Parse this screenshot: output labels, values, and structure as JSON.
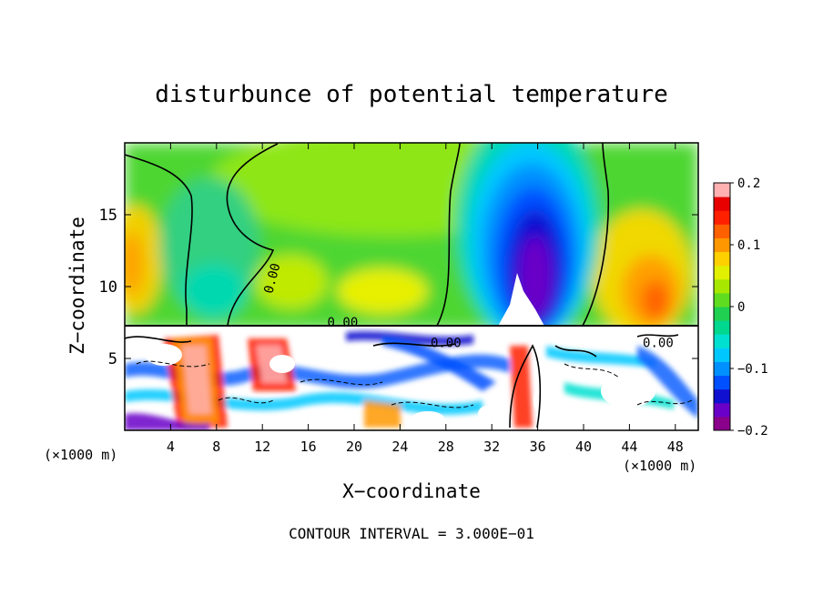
{
  "chart_data": {
    "type": "heatmap",
    "title": "disturbunce of potential temperature",
    "xlabel": "X−coordinate",
    "ylabel": "Z−coordinate",
    "x_unit": "(×1000 m)",
    "x_unit_right": "(×1000 m)",
    "footnote": "CONTOUR INTERVAL = 3.000E−01",
    "xlim": [
      0,
      50
    ],
    "ylim": [
      0,
      20
    ],
    "x_ticks": [
      4,
      8,
      12,
      16,
      20,
      24,
      28,
      32,
      36,
      40,
      44,
      48
    ],
    "y_ticks": [
      5,
      10,
      15
    ],
    "x_tick_labels": [
      "4",
      "8",
      "12",
      "16",
      "20",
      "24",
      "28",
      "32",
      "36",
      "40",
      "44",
      "48"
    ],
    "y_tick_labels": [
      "5",
      "10",
      "15"
    ],
    "colorbar": {
      "range": [
        -0.2,
        0.2
      ],
      "tick_values": [
        0.2,
        0.1,
        0,
        -0.1,
        -0.2
      ],
      "tick_labels": [
        "0.2",
        "0.1",
        "0",
        "−0.1",
        "−0.2"
      ],
      "colors": [
        "#8b008b",
        "#6a00c8",
        "#1010d0",
        "#0050ff",
        "#0090ff",
        "#00c8ff",
        "#00e0d0",
        "#00d890",
        "#20d050",
        "#60dc20",
        "#a8e800",
        "#e0f000",
        "#ffd000",
        "#ff9800",
        "#ff6000",
        "#ff2000",
        "#e80000",
        "#ffb0b0"
      ]
    },
    "contour_labels": [
      {
        "text": "0.00",
        "x": 13.2,
        "z": 10.5
      },
      {
        "text": "0.00",
        "x": 19.0,
        "z": 7.2
      },
      {
        "text": "0.00",
        "x": 28.0,
        "z": 5.8
      },
      {
        "text": "0.00",
        "x": 46.5,
        "z": 5.8
      }
    ],
    "features": [
      {
        "kind": "cold_anomaly",
        "x_center": 34.5,
        "z_center": 13,
        "min_value": -0.2
      },
      {
        "kind": "warm_anomaly",
        "x_center": 45.5,
        "z_center": 10,
        "max_value": 0.12
      },
      {
        "kind": "warm_anomaly",
        "x_center": 1.0,
        "z_center": 12.5,
        "max_value": 0.1
      },
      {
        "kind": "cool_column",
        "x_center": 10,
        "z_center": 13,
        "min_value": -0.05
      },
      {
        "kind": "turbulent_layer",
        "z_top": 7.3
      }
    ]
  }
}
